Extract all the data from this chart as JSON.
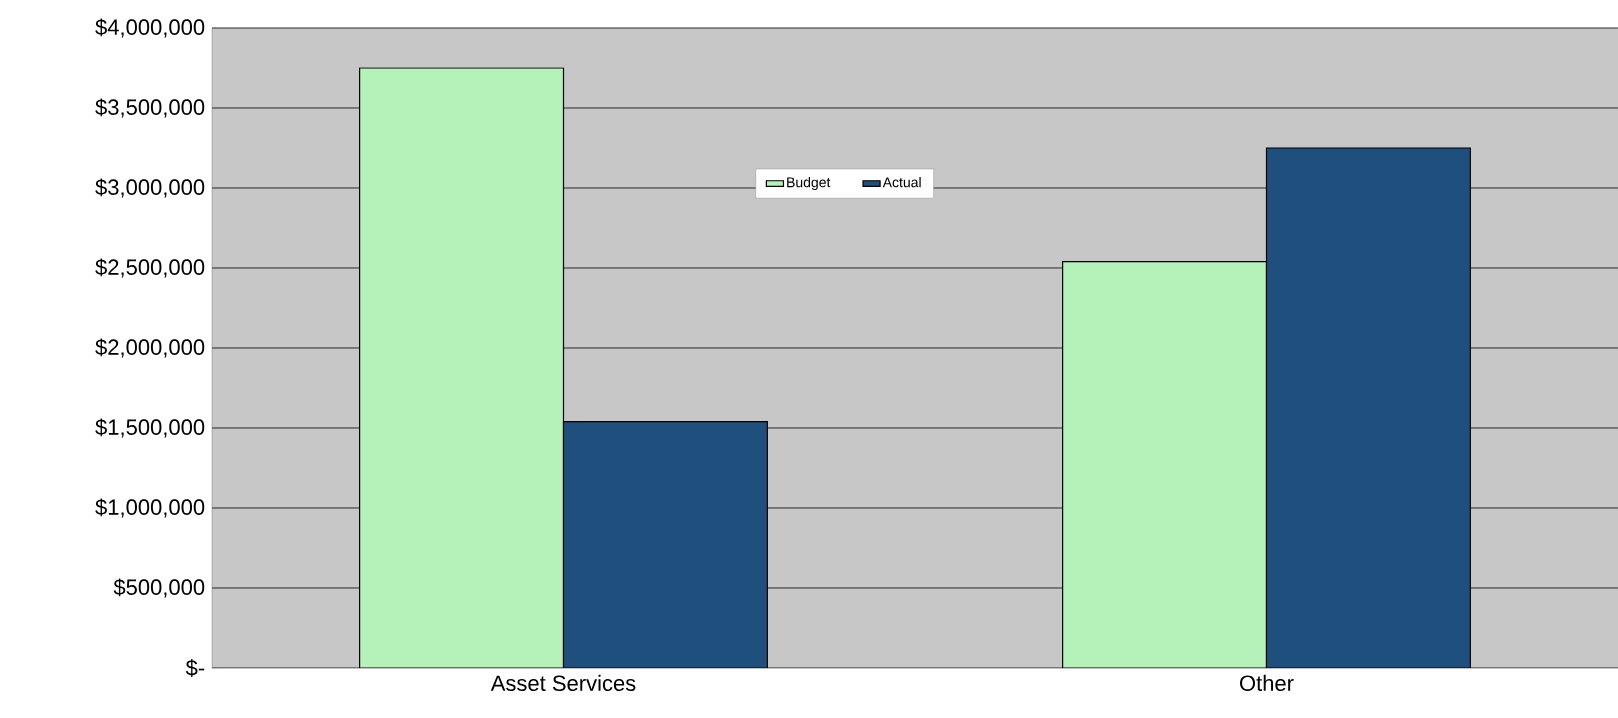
{
  "chart_data": {
    "type": "bar",
    "categories": [
      "Asset Services",
      "Other"
    ],
    "series": [
      {
        "name": "Budget",
        "color": "#b5f2b9",
        "values": [
          3750000,
          2540000
        ]
      },
      {
        "name": "Actual",
        "color": "#1f4f7c",
        "values": [
          1540000,
          3250000
        ]
      }
    ],
    "ylim": [
      0,
      4000000
    ],
    "yticks": [
      {
        "value": 0,
        "label": "$-"
      },
      {
        "value": 500000,
        "label": "$500,000"
      },
      {
        "value": 1000000,
        "label": "$1,000,000"
      },
      {
        "value": 1500000,
        "label": "$1,500,000"
      },
      {
        "value": 2000000,
        "label": "$2,000,000"
      },
      {
        "value": 2500000,
        "label": "$2,500,000"
      },
      {
        "value": 3000000,
        "label": "$3,000,000"
      },
      {
        "value": 3500000,
        "label": "$3,500,000"
      },
      {
        "value": 4000000,
        "label": "$4,000,000"
      }
    ],
    "grid": "y",
    "legend": "top"
  }
}
